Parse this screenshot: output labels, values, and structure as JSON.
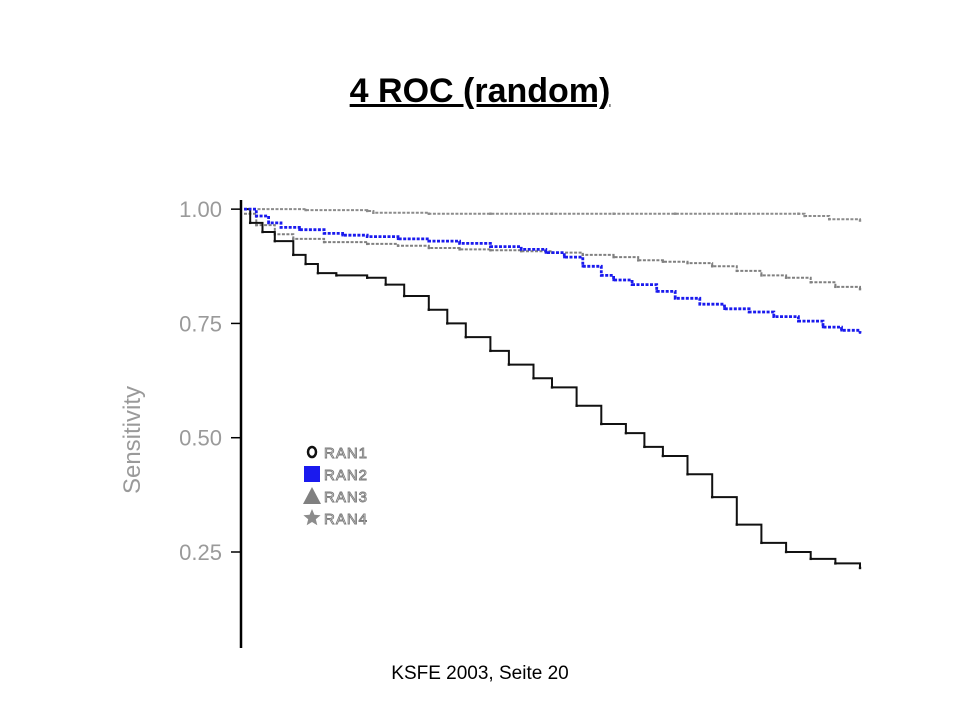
{
  "slide": {
    "title": "4 ROC (random)",
    "footer": "KSFE 2003, Seite 20"
  },
  "chart_data": {
    "type": "line",
    "title": "",
    "xlabel": "",
    "ylabel": "Sensitivity",
    "ylim": [
      0.04,
      1.02
    ],
    "xlim": [
      0,
      1
    ],
    "yticks": [
      1.0,
      0.75,
      0.5,
      0.25
    ],
    "ytick_labels": [
      "1.00",
      "0.75",
      "0.50",
      "0.25"
    ],
    "grid": false,
    "legend_position": "lower-left",
    "series": [
      {
        "name": "RAN1",
        "marker": "o",
        "color": "#111111",
        "points": [
          [
            0.0,
            1.0
          ],
          [
            0.01,
            0.97
          ],
          [
            0.03,
            0.95
          ],
          [
            0.05,
            0.93
          ],
          [
            0.08,
            0.9
          ],
          [
            0.1,
            0.88
          ],
          [
            0.12,
            0.86
          ],
          [
            0.15,
            0.855
          ],
          [
            0.2,
            0.85
          ],
          [
            0.23,
            0.835
          ],
          [
            0.26,
            0.81
          ],
          [
            0.3,
            0.78
          ],
          [
            0.33,
            0.75
          ],
          [
            0.36,
            0.72
          ],
          [
            0.4,
            0.69
          ],
          [
            0.43,
            0.66
          ],
          [
            0.47,
            0.63
          ],
          [
            0.5,
            0.61
          ],
          [
            0.54,
            0.57
          ],
          [
            0.58,
            0.53
          ],
          [
            0.62,
            0.51
          ],
          [
            0.65,
            0.48
          ],
          [
            0.68,
            0.46
          ],
          [
            0.72,
            0.42
          ],
          [
            0.76,
            0.37
          ],
          [
            0.8,
            0.31
          ],
          [
            0.84,
            0.27
          ],
          [
            0.88,
            0.25
          ],
          [
            0.92,
            0.235
          ],
          [
            0.96,
            0.225
          ],
          [
            1.0,
            0.215
          ]
        ]
      },
      {
        "name": "RAN2",
        "marker": "square",
        "color": "#1a1aee",
        "points": [
          [
            0.0,
            1.0
          ],
          [
            0.02,
            0.985
          ],
          [
            0.04,
            0.97
          ],
          [
            0.06,
            0.96
          ],
          [
            0.09,
            0.955
          ],
          [
            0.13,
            0.947
          ],
          [
            0.16,
            0.943
          ],
          [
            0.2,
            0.94
          ],
          [
            0.25,
            0.935
          ],
          [
            0.3,
            0.93
          ],
          [
            0.35,
            0.925
          ],
          [
            0.4,
            0.918
          ],
          [
            0.45,
            0.912
          ],
          [
            0.49,
            0.905
          ],
          [
            0.52,
            0.895
          ],
          [
            0.55,
            0.875
          ],
          [
            0.58,
            0.855
          ],
          [
            0.6,
            0.845
          ],
          [
            0.63,
            0.835
          ],
          [
            0.67,
            0.82
          ],
          [
            0.7,
            0.805
          ],
          [
            0.74,
            0.792
          ],
          [
            0.78,
            0.782
          ],
          [
            0.82,
            0.775
          ],
          [
            0.86,
            0.765
          ],
          [
            0.9,
            0.755
          ],
          [
            0.94,
            0.742
          ],
          [
            0.97,
            0.735
          ],
          [
            1.0,
            0.73
          ]
        ]
      },
      {
        "name": "RAN3",
        "marker": "triangle",
        "color": "#808080",
        "points": [
          [
            0.0,
            0.99
          ],
          [
            0.02,
            0.965
          ],
          [
            0.05,
            0.945
          ],
          [
            0.08,
            0.935
          ],
          [
            0.13,
            0.928
          ],
          [
            0.2,
            0.924
          ],
          [
            0.25,
            0.92
          ],
          [
            0.3,
            0.915
          ],
          [
            0.35,
            0.912
          ],
          [
            0.4,
            0.91
          ],
          [
            0.45,
            0.908
          ],
          [
            0.5,
            0.905
          ],
          [
            0.55,
            0.9
          ],
          [
            0.6,
            0.895
          ],
          [
            0.64,
            0.888
          ],
          [
            0.68,
            0.885
          ],
          [
            0.72,
            0.882
          ],
          [
            0.76,
            0.875
          ],
          [
            0.8,
            0.865
          ],
          [
            0.84,
            0.855
          ],
          [
            0.88,
            0.85
          ],
          [
            0.92,
            0.84
          ],
          [
            0.96,
            0.83
          ],
          [
            1.0,
            0.825
          ]
        ]
      },
      {
        "name": "RAN4",
        "marker": "star",
        "color": "#8c8c8c",
        "points": [
          [
            0.0,
            1.0
          ],
          [
            0.1,
            0.998
          ],
          [
            0.2,
            0.996
          ],
          [
            0.21,
            0.992
          ],
          [
            0.3,
            0.99
          ],
          [
            0.4,
            0.99
          ],
          [
            0.5,
            0.99
          ],
          [
            0.6,
            0.99
          ],
          [
            0.7,
            0.99
          ],
          [
            0.8,
            0.99
          ],
          [
            0.9,
            0.99
          ],
          [
            0.91,
            0.985
          ],
          [
            0.95,
            0.978
          ],
          [
            1.0,
            0.975
          ]
        ]
      }
    ]
  }
}
